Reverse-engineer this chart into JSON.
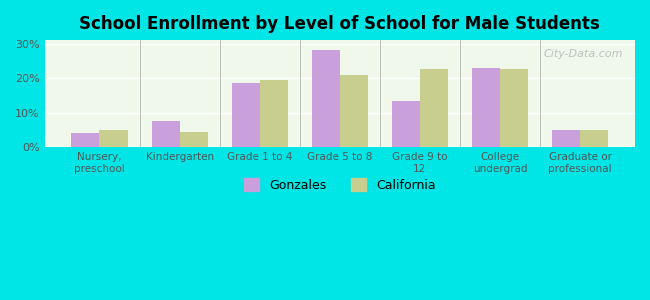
{
  "title": "School Enrollment by Level of School for Male Students",
  "categories": [
    "Nursery,\npreschool",
    "Kindergarten",
    "Grade 1 to 4",
    "Grade 5 to 8",
    "Grade 9 to\n12",
    "College\nundergrad",
    "Graduate or\nprofessional"
  ],
  "gonzales": [
    4.0,
    7.5,
    18.5,
    28.0,
    13.5,
    23.0,
    5.0
  ],
  "california": [
    5.0,
    4.5,
    19.5,
    21.0,
    22.5,
    22.5,
    5.0
  ],
  "gonzales_color": "#c9a0dc",
  "california_color": "#c8cf8e",
  "background_outer": "#00e5e5",
  "background_inner": "#f0f8ec",
  "grid_color": "#ffffff",
  "axis_label_color": "#555555",
  "title_color": "#000000",
  "ylim": [
    0,
    31
  ],
  "yticks": [
    0,
    10,
    20,
    30
  ],
  "ytick_labels": [
    "0%",
    "10%",
    "20%",
    "30%"
  ],
  "bar_width": 0.35,
  "legend_gonzales": "Gonzales",
  "legend_california": "California",
  "watermark": "City-Data.com"
}
